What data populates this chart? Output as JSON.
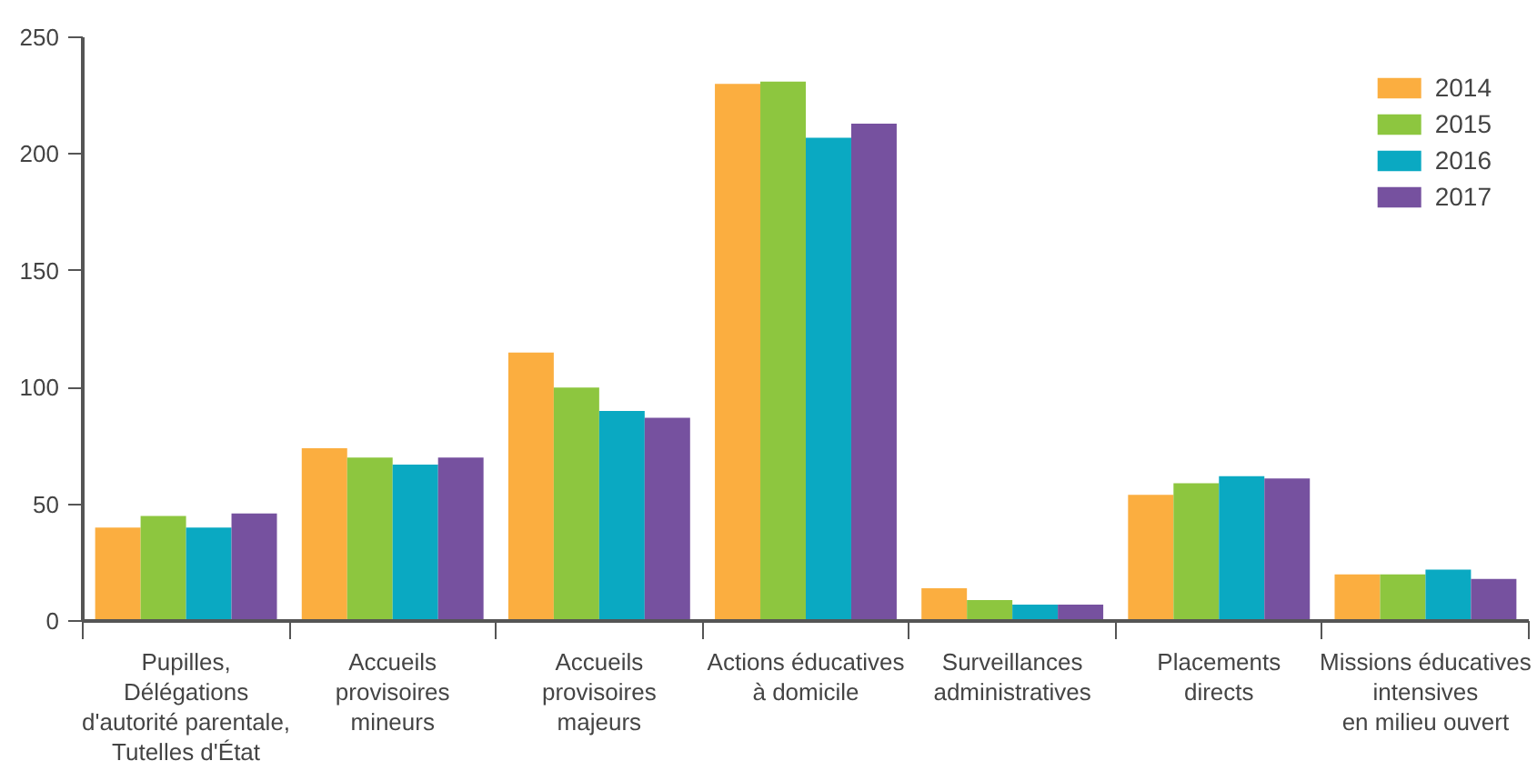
{
  "chart_data": {
    "type": "bar",
    "categories": [
      "Pupilles,\nDélégations\nd'autorité parentale,\nTutelles d'État",
      "Accueils\nprovisoires\nmineurs",
      "Accueils\nprovisoires\nmajeurs",
      "Actions éducatives\nà domicile",
      "Surveillances\nadministratives",
      "Placements\ndirects",
      "Missions éducatives\nintensives\nen milieu ouvert"
    ],
    "series": [
      {
        "name": "2014",
        "color": "#fbae40",
        "values": [
          40,
          74,
          115,
          230,
          14,
          54,
          20
        ]
      },
      {
        "name": "2015",
        "color": "#8dc63f",
        "values": [
          45,
          70,
          100,
          231,
          9,
          59,
          20
        ]
      },
      {
        "name": "2016",
        "color": "#0aa9c2",
        "values": [
          40,
          67,
          90,
          207,
          7,
          62,
          22
        ]
      },
      {
        "name": "2017",
        "color": "#76519f",
        "values": [
          46,
          70,
          87,
          213,
          7,
          61,
          18
        ]
      }
    ],
    "ylim": [
      0,
      250
    ],
    "yticks": [
      0,
      50,
      100,
      150,
      200,
      250
    ],
    "grid": false,
    "legend": "top right"
  }
}
